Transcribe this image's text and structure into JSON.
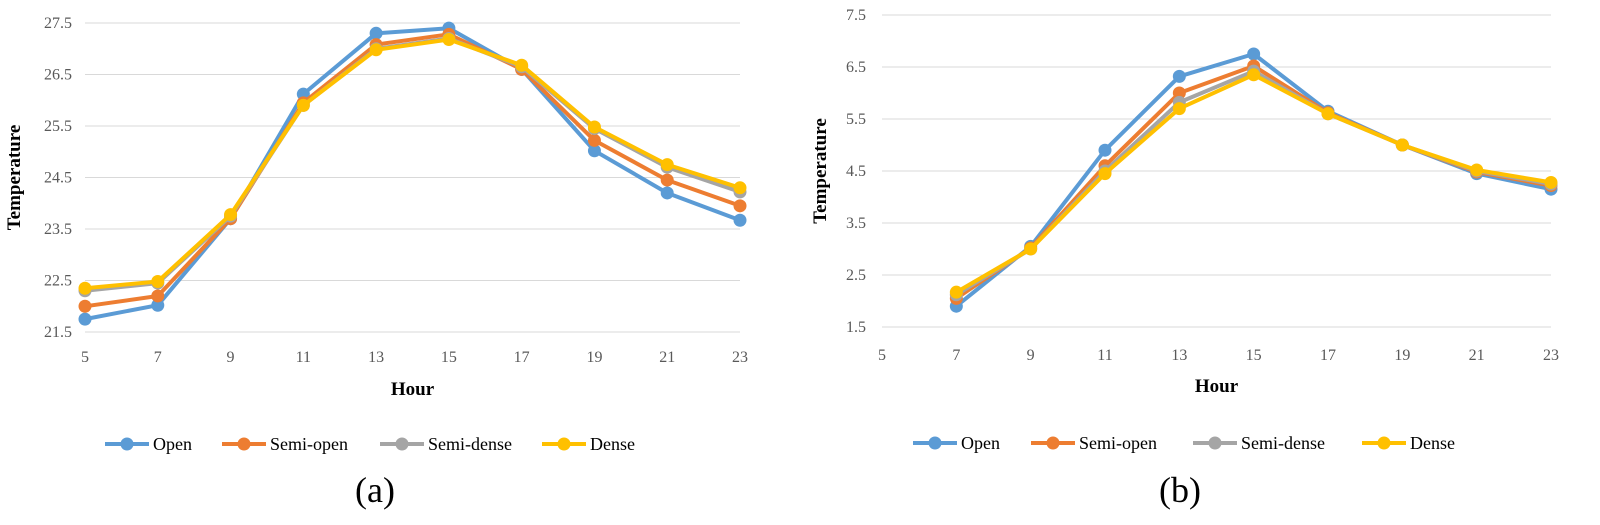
{
  "chart_data": [
    {
      "type": "line",
      "panel_label": "(a)",
      "xlabel": "Hour",
      "ylabel": "Temperature",
      "x_ticks": [
        5,
        7,
        9,
        11,
        13,
        15,
        17,
        19,
        21,
        23
      ],
      "x_range": [
        5,
        23
      ],
      "ylim": [
        21.5,
        27.5
      ],
      "y_ticks": [
        21.5,
        22.5,
        23.5,
        24.5,
        25.5,
        26.5,
        27.5
      ],
      "grid": true,
      "legend_position": "bottom",
      "series": [
        {
          "name": "Open",
          "color": "#5b9bd5",
          "x": [
            5,
            7,
            9,
            11,
            13,
            15,
            17,
            19,
            21,
            23
          ],
          "values": [
            21.75,
            22.02,
            23.7,
            26.12,
            27.3,
            27.4,
            26.6,
            25.02,
            24.2,
            23.67
          ]
        },
        {
          "name": "Semi-open",
          "color": "#ed7d31",
          "x": [
            5,
            7,
            9,
            11,
            13,
            15,
            17,
            19,
            21,
            23
          ],
          "values": [
            22.0,
            22.2,
            23.7,
            25.95,
            27.08,
            27.28,
            26.6,
            25.22,
            24.45,
            23.95
          ]
        },
        {
          "name": "Semi-dense",
          "color": "#a5a5a5",
          "x": [
            5,
            7,
            9,
            11,
            13,
            15,
            17,
            19,
            21,
            23
          ],
          "values": [
            22.3,
            22.45,
            23.75,
            25.9,
            27.0,
            27.2,
            26.65,
            25.45,
            24.7,
            24.22
          ]
        },
        {
          "name": "Dense",
          "color": "#ffc000",
          "x": [
            5,
            7,
            9,
            11,
            13,
            15,
            17,
            19,
            21,
            23
          ],
          "values": [
            22.35,
            22.48,
            23.78,
            25.9,
            26.98,
            27.18,
            26.68,
            25.48,
            24.75,
            24.3
          ]
        }
      ]
    },
    {
      "type": "line",
      "panel_label": "(b)",
      "xlabel": "Hour",
      "ylabel": "Temperature",
      "x_ticks": [
        5,
        7,
        9,
        11,
        13,
        15,
        17,
        19,
        21,
        23
      ],
      "x_range": [
        5,
        23
      ],
      "ylim": [
        1.5,
        7.5
      ],
      "y_ticks": [
        1.5,
        2.5,
        3.5,
        4.5,
        5.5,
        6.5,
        7.5
      ],
      "grid": true,
      "legend_position": "bottom",
      "series": [
        {
          "name": "Open",
          "color": "#5b9bd5",
          "x": [
            7,
            9,
            11,
            13,
            15,
            17,
            19,
            21,
            23
          ],
          "values": [
            1.9,
            3.05,
            4.9,
            6.32,
            6.75,
            5.65,
            5.0,
            4.45,
            4.15
          ]
        },
        {
          "name": "Semi-open",
          "color": "#ed7d31",
          "x": [
            7,
            9,
            11,
            13,
            15,
            17,
            19,
            21,
            23
          ],
          "values": [
            2.05,
            3.02,
            4.6,
            6.0,
            6.52,
            5.62,
            5.0,
            4.48,
            4.22
          ]
        },
        {
          "name": "Semi-dense",
          "color": "#a5a5a5",
          "x": [
            7,
            9,
            11,
            13,
            15,
            17,
            19,
            21,
            23
          ],
          "values": [
            2.12,
            3.0,
            4.5,
            5.82,
            6.42,
            5.6,
            5.0,
            4.5,
            4.25
          ]
        },
        {
          "name": "Dense",
          "color": "#ffc000",
          "x": [
            7,
            9,
            11,
            13,
            15,
            17,
            19,
            21,
            23
          ],
          "values": [
            2.17,
            3.0,
            4.45,
            5.7,
            6.35,
            5.6,
            5.0,
            4.52,
            4.28
          ]
        }
      ]
    }
  ]
}
